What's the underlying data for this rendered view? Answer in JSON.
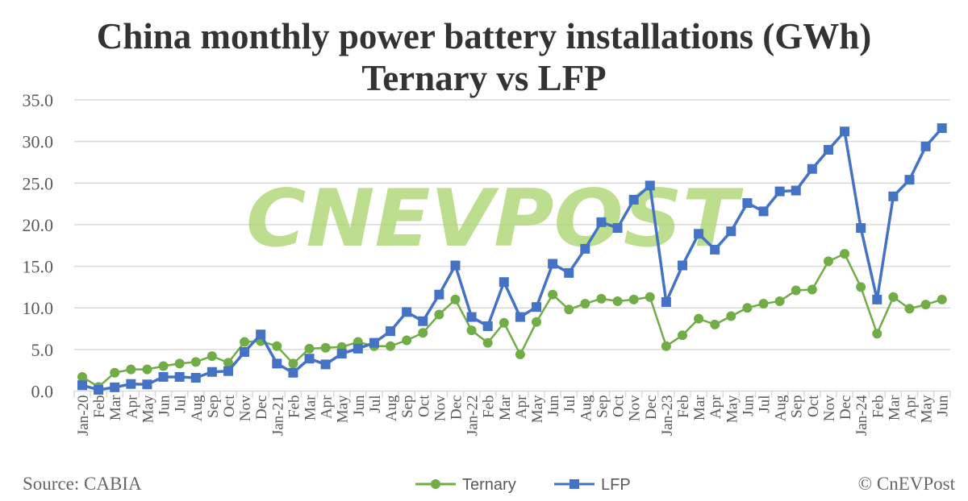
{
  "chart_data": {
    "type": "line",
    "title": "China monthly power battery installations (GWh)",
    "subtitle": "Ternary vs LFP",
    "ylim": [
      0,
      35
    ],
    "yticks": [
      "0.0",
      "5.0",
      "10.0",
      "15.0",
      "20.0",
      "25.0",
      "30.0",
      "35.0"
    ],
    "grid": true,
    "legend": "bottom-center",
    "categories": [
      "Jan-20",
      "Feb",
      "Mar",
      "Apr",
      "May",
      "Jun",
      "Jul",
      "Aug",
      "Sep",
      "Oct",
      "Nov",
      "Dec",
      "Jan-21",
      "Feb",
      "Mar",
      "Apr",
      "May",
      "Jun",
      "Jul",
      "Aug",
      "Sep",
      "Oct",
      "Nov",
      "Dec",
      "Jan-22",
      "Feb",
      "Mar",
      "Apr",
      "May",
      "Jun",
      "Jul",
      "Aug",
      "Sep",
      "Oct",
      "Nov",
      "Dec",
      "Jan-23",
      "Feb",
      "Mar",
      "Apr",
      "May",
      "Jun",
      "Jul",
      "Aug",
      "Sep",
      "Oct",
      "Nov",
      "Dec",
      "Jan-24",
      "Feb",
      "Mar",
      "Apr",
      "May",
      "Jun"
    ],
    "series": [
      {
        "name": "Ternary",
        "color": "#70AD47",
        "marker": "circle",
        "values": [
          1.7,
          0.5,
          2.2,
          2.6,
          2.6,
          3.0,
          3.3,
          3.5,
          4.2,
          3.4,
          5.9,
          6.0,
          5.4,
          3.3,
          5.1,
          5.2,
          5.3,
          5.9,
          5.4,
          5.4,
          6.1,
          7.0,
          9.2,
          11.0,
          7.3,
          5.8,
          8.2,
          4.4,
          8.3,
          11.6,
          9.8,
          10.5,
          11.1,
          10.8,
          11.0,
          11.3,
          5.4,
          6.7,
          8.7,
          8.0,
          9.0,
          10.0,
          10.5,
          10.8,
          12.1,
          12.2,
          15.6,
          16.5,
          12.5,
          6.9,
          11.3,
          9.9,
          10.4,
          11.0
        ]
      },
      {
        "name": "LFP",
        "color": "#4472C4",
        "marker": "square",
        "values": [
          0.7,
          0.15,
          0.45,
          0.85,
          0.8,
          1.7,
          1.7,
          1.6,
          2.3,
          2.4,
          4.7,
          6.8,
          3.3,
          2.2,
          3.9,
          3.2,
          4.5,
          5.1,
          5.8,
          7.2,
          9.5,
          8.4,
          11.6,
          15.1,
          8.9,
          7.8,
          13.1,
          8.9,
          10.1,
          15.3,
          14.2,
          17.1,
          20.3,
          19.6,
          23.0,
          24.7,
          10.7,
          15.1,
          18.9,
          17.0,
          19.2,
          22.6,
          21.6,
          24.0,
          24.1,
          26.7,
          29.0,
          31.2,
          19.6,
          11.0,
          23.4,
          25.4,
          29.4,
          31.6
        ]
      }
    ]
  },
  "footer": {
    "source": "Source: CABIA",
    "copyright": "© CnEVPost"
  },
  "watermark": "CNEVPOST"
}
